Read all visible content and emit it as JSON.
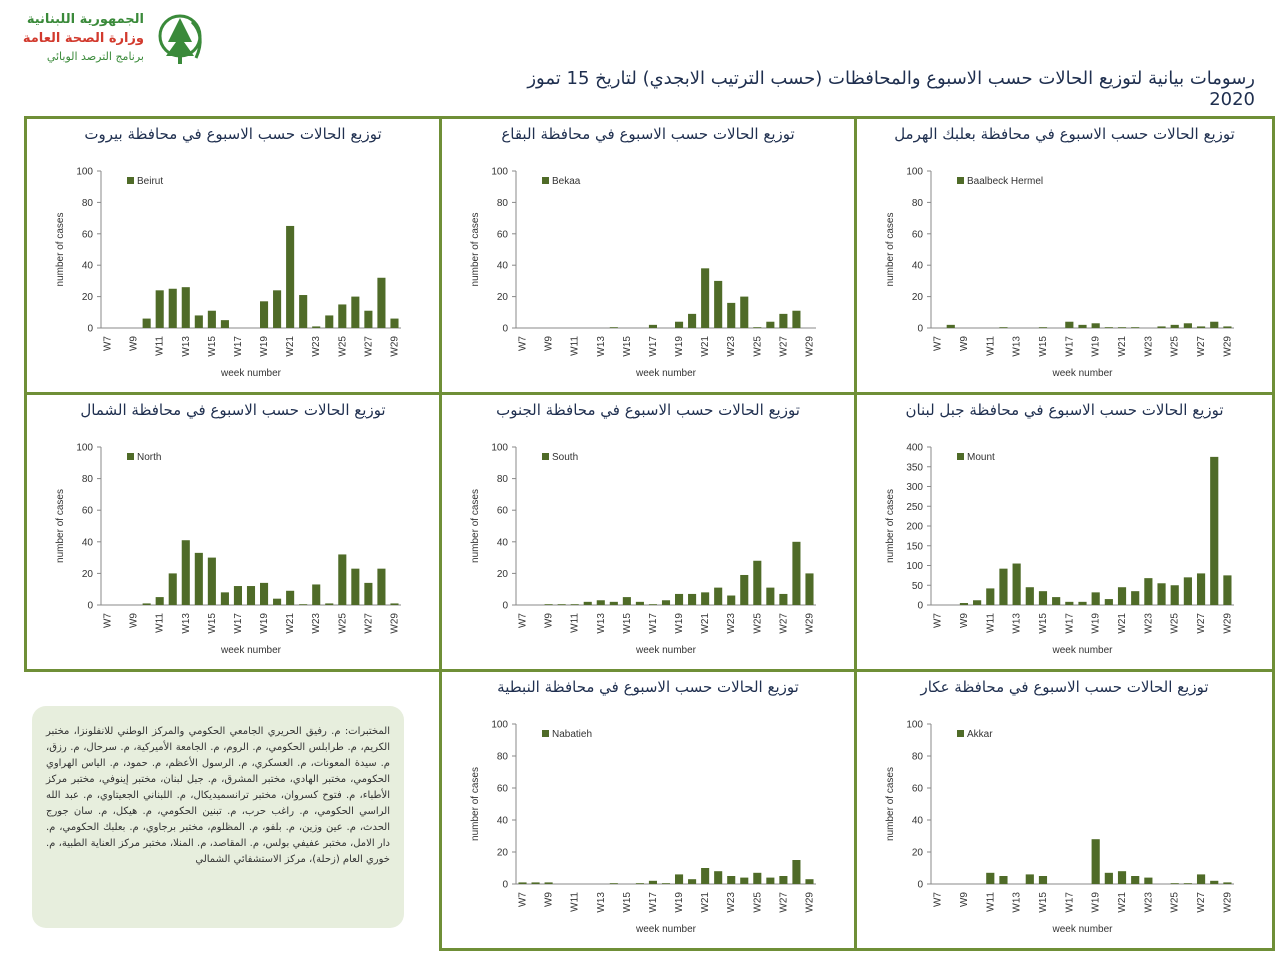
{
  "header": {
    "org_line1": "الجمهورية اللبنانية",
    "org_line2": "وزارة الصحة العامة",
    "org_line3": "برنامج الترصد الوبائي",
    "title": "رسومات بيانية لتوزيع الحالات حسب الاسبوع  والمحافظات (حسب الترتيب الابجدي) لتاريخ  15 تموز 2020"
  },
  "notes": {
    "labs_text": "المختبرات: م. رفيق الحريري الجامعي الحكومي والمركز الوطني للانفلونزا، مختبر الكريم، م. طرابلس الحكومي، م. الروم، م. الجامعة الأميركية، م. سرحال، م. رزق، م. سيدة المعونات، م. العسكري، م. الرسول الأعظم، م. حمود، م. الياس الهراوي الحكومي، مختبر الهادي، مختبر المشرق، م. جبل لبنان، مختبر إينوفي، مختبر مركز الأطباء، م. فتوح كسروان، مختبر ترانسميديكال، م. اللبناني الجعيتاوي، م. عبد الله الراسي الحكومي، م. راغب حرب، م. تبنين الحكومي، م. هيكل، م. سان جورج الحدث، م. عين وزين، م. بلفو، م. المظلوم، مختبر برجاوي، م. بعلبك الحكومي، م. دار الامل، مختبر عفيفي بولس، م. المقاصد، م. المنلا، مختبر مركز العناية الطبية، م. خوري العام (زحلة)، مركز الاستشفائي الشمالي"
  },
  "colors": {
    "bar": "#4f6b28",
    "panel_border": "#6f8f37",
    "title": "#1f2f4f"
  },
  "chart_data": [
    {
      "id": "beirut",
      "type": "bar",
      "title": "توزيع الحالات حسب الاسبوع  في محافظة بيروت",
      "legend": "Beirut",
      "xlabel": "week number",
      "ylabel": "number of cases",
      "categories": [
        "W7",
        "W8",
        "W9",
        "W10",
        "W11",
        "W12",
        "W13",
        "W14",
        "W15",
        "W16",
        "W17",
        "W18",
        "W19",
        "W20",
        "W21",
        "W22",
        "W23",
        "W24",
        "W25",
        "W26",
        "W27",
        "W28",
        "W29"
      ],
      "tick_labels": [
        "W7",
        "W9",
        "W11",
        "W13",
        "W15",
        "W17",
        "W19",
        "W21",
        "W23",
        "W25",
        "W27",
        "W29"
      ],
      "values": [
        0,
        0,
        0,
        6,
        24,
        25,
        26,
        8,
        11,
        5,
        0,
        0,
        17,
        24,
        65,
        21,
        1,
        8,
        15,
        20,
        11,
        32,
        6
      ],
      "ylim": [
        0,
        100
      ],
      "yticks": [
        "0",
        "20",
        "40",
        "60",
        "80",
        "100"
      ]
    },
    {
      "id": "bekaa",
      "type": "bar",
      "title": "توزيع الحالات حسب الاسبوع  في محافظة البقاع",
      "legend": "Bekaa",
      "xlabel": "week number",
      "ylabel": "number of cases",
      "categories": [
        "W7",
        "W8",
        "W9",
        "W10",
        "W11",
        "W12",
        "W13",
        "W14",
        "W15",
        "W16",
        "W17",
        "W18",
        "W19",
        "W20",
        "W21",
        "W22",
        "W23",
        "W24",
        "W25",
        "W26",
        "W27",
        "W28",
        "W29"
      ],
      "tick_labels": [
        "W7",
        "W9",
        "W11",
        "W13",
        "W15",
        "W17",
        "W19",
        "W21",
        "W23",
        "W25",
        "W27",
        "W29"
      ],
      "values": [
        0,
        0,
        0,
        0,
        0,
        0,
        0,
        0.5,
        0,
        0,
        2,
        0,
        4,
        9,
        38,
        30,
        16,
        20,
        0.5,
        4,
        9,
        11,
        0
      ],
      "ylim": [
        0,
        100
      ],
      "yticks": [
        "0",
        "20",
        "40",
        "60",
        "80",
        "100"
      ]
    },
    {
      "id": "baalbeck",
      "type": "bar",
      "title": "توزيع الحالات حسب الاسبوع  في محافظة بعلبك الهرمل",
      "legend": "Baalbeck Hermel",
      "xlabel": "week number",
      "ylabel": "number of cases",
      "categories": [
        "W7",
        "W8",
        "W9",
        "W10",
        "W11",
        "W12",
        "W13",
        "W14",
        "W15",
        "W16",
        "W17",
        "W18",
        "W19",
        "W20",
        "W21",
        "W22",
        "W23",
        "W24",
        "W25",
        "W26",
        "W27",
        "W28",
        "W29"
      ],
      "tick_labels": [
        "W7",
        "W9",
        "W11",
        "W13",
        "W15",
        "W17",
        "W19",
        "W21",
        "W23",
        "W25",
        "W27",
        "W29"
      ],
      "values": [
        0,
        2,
        0,
        0,
        0,
        0.5,
        0,
        0,
        0.5,
        0,
        4,
        2,
        3,
        0.5,
        0.5,
        0.5,
        0,
        1,
        2,
        3,
        1,
        4,
        1
      ],
      "ylim": [
        0,
        100
      ],
      "yticks": [
        "0",
        "20",
        "40",
        "60",
        "80",
        "100"
      ]
    },
    {
      "id": "north",
      "type": "bar",
      "title": "توزيع الحالات حسب الاسبوع  في محافظة الشمال",
      "legend": "North",
      "xlabel": "week number",
      "ylabel": "number of cases",
      "categories": [
        "W7",
        "W8",
        "W9",
        "W10",
        "W11",
        "W12",
        "W13",
        "W14",
        "W15",
        "W16",
        "W17",
        "W18",
        "W19",
        "W20",
        "W21",
        "W22",
        "W23",
        "W24",
        "W25",
        "W26",
        "W27",
        "W28",
        "W29"
      ],
      "tick_labels": [
        "W7",
        "W9",
        "W11",
        "W13",
        "W15",
        "W17",
        "W19",
        "W21",
        "W23",
        "W25",
        "W27",
        "W29"
      ],
      "values": [
        0,
        0,
        0,
        1,
        5,
        20,
        41,
        33,
        30,
        8,
        12,
        12,
        14,
        4,
        9,
        0.5,
        13,
        1,
        32,
        23,
        14,
        23,
        1
      ],
      "ylim": [
        0,
        100
      ],
      "yticks": [
        "0",
        "20",
        "40",
        "60",
        "80",
        "100"
      ]
    },
    {
      "id": "south",
      "type": "bar",
      "title": "توزيع الحالات حسب الاسبوع  في محافظة الجنوب",
      "legend": "South",
      "xlabel": "week number",
      "ylabel": "number of cases",
      "categories": [
        "W7",
        "W8",
        "W9",
        "W10",
        "W11",
        "W12",
        "W13",
        "W14",
        "W15",
        "W16",
        "W17",
        "W18",
        "W19",
        "W20",
        "W21",
        "W22",
        "W23",
        "W24",
        "W25",
        "W26",
        "W27",
        "W28",
        "W29"
      ],
      "tick_labels": [
        "W7",
        "W9",
        "W11",
        "W13",
        "W15",
        "W17",
        "W19",
        "W21",
        "W23",
        "W25",
        "W27",
        "W29"
      ],
      "values": [
        0,
        0,
        0.5,
        0.5,
        0.5,
        2,
        3,
        2,
        5,
        2,
        0.5,
        3,
        7,
        7,
        8,
        11,
        6,
        19,
        28,
        11,
        7,
        40,
        20
      ],
      "ylim": [
        0,
        100
      ],
      "yticks": [
        "0",
        "20",
        "40",
        "60",
        "80",
        "100"
      ]
    },
    {
      "id": "mount",
      "type": "bar",
      "title": "توزيع الحالات حسب الاسبوع  في محافظة جبل لبنان",
      "legend": "Mount",
      "xlabel": "week number",
      "ylabel": "number of cases",
      "categories": [
        "W7",
        "W8",
        "W9",
        "W10",
        "W11",
        "W12",
        "W13",
        "W14",
        "W15",
        "W16",
        "W17",
        "W18",
        "W19",
        "W20",
        "W21",
        "W22",
        "W23",
        "W24",
        "W25",
        "W26",
        "W27",
        "W28",
        "W29"
      ],
      "tick_labels": [
        "W7",
        "W9",
        "W11",
        "W13",
        "W15",
        "W17",
        "W19",
        "W21",
        "W23",
        "W25",
        "W27",
        "W29"
      ],
      "values": [
        0,
        0,
        5,
        12,
        42,
        92,
        105,
        45,
        35,
        20,
        8,
        8,
        32,
        15,
        45,
        35,
        68,
        55,
        50,
        70,
        80,
        375,
        75
      ],
      "ylim": [
        0,
        400
      ],
      "yticks": [
        "0",
        "50",
        "100",
        "150",
        "200",
        "250",
        "300",
        "350",
        "400"
      ]
    },
    {
      "id": "nabatieh",
      "type": "bar",
      "title": "توزيع الحالات حسب الاسبوع  في محافظة النبطية",
      "legend": "Nabatieh",
      "xlabel": "week number",
      "ylabel": "number of cases",
      "categories": [
        "W7",
        "W8",
        "W9",
        "W10",
        "W11",
        "W12",
        "W13",
        "W14",
        "W15",
        "W16",
        "W17",
        "W18",
        "W19",
        "W20",
        "W21",
        "W22",
        "W23",
        "W24",
        "W25",
        "W26",
        "W27",
        "W28",
        "W29"
      ],
      "tick_labels": [
        "W7",
        "W9",
        "W11",
        "W13",
        "W15",
        "W17",
        "W19",
        "W21",
        "W23",
        "W25",
        "W27",
        "W29"
      ],
      "values": [
        1,
        1,
        1,
        0,
        0,
        0,
        0,
        0.5,
        0,
        0.5,
        2,
        0.5,
        6,
        3,
        10,
        8,
        5,
        4,
        7,
        4,
        5,
        15,
        3
      ],
      "ylim": [
        0,
        100
      ],
      "yticks": [
        "0",
        "20",
        "40",
        "60",
        "80",
        "100"
      ]
    },
    {
      "id": "akkar",
      "type": "bar",
      "title": "توزيع الحالات حسب  الاسبوع  في محافظة عكار",
      "legend": "Akkar",
      "xlabel": "week number",
      "ylabel": "number of cases",
      "categories": [
        "W7",
        "W8",
        "W9",
        "W10",
        "W11",
        "W12",
        "W13",
        "W14",
        "W15",
        "W16",
        "W17",
        "W18",
        "W19",
        "W20",
        "W21",
        "W22",
        "W23",
        "W24",
        "W25",
        "W26",
        "W27",
        "W28",
        "W29"
      ],
      "tick_labels": [
        "W7",
        "W9",
        "W11",
        "W13",
        "W15",
        "W17",
        "W19",
        "W21",
        "W23",
        "W25",
        "W27",
        "W29"
      ],
      "values": [
        0,
        0,
        0,
        0,
        7,
        5,
        0,
        6,
        5,
        0,
        0,
        0,
        28,
        7,
        8,
        5,
        4,
        0,
        0.5,
        0.5,
        6,
        2,
        1
      ],
      "ylim": [
        0,
        100
      ],
      "yticks": [
        "0",
        "20",
        "40",
        "60",
        "80",
        "100"
      ]
    }
  ]
}
